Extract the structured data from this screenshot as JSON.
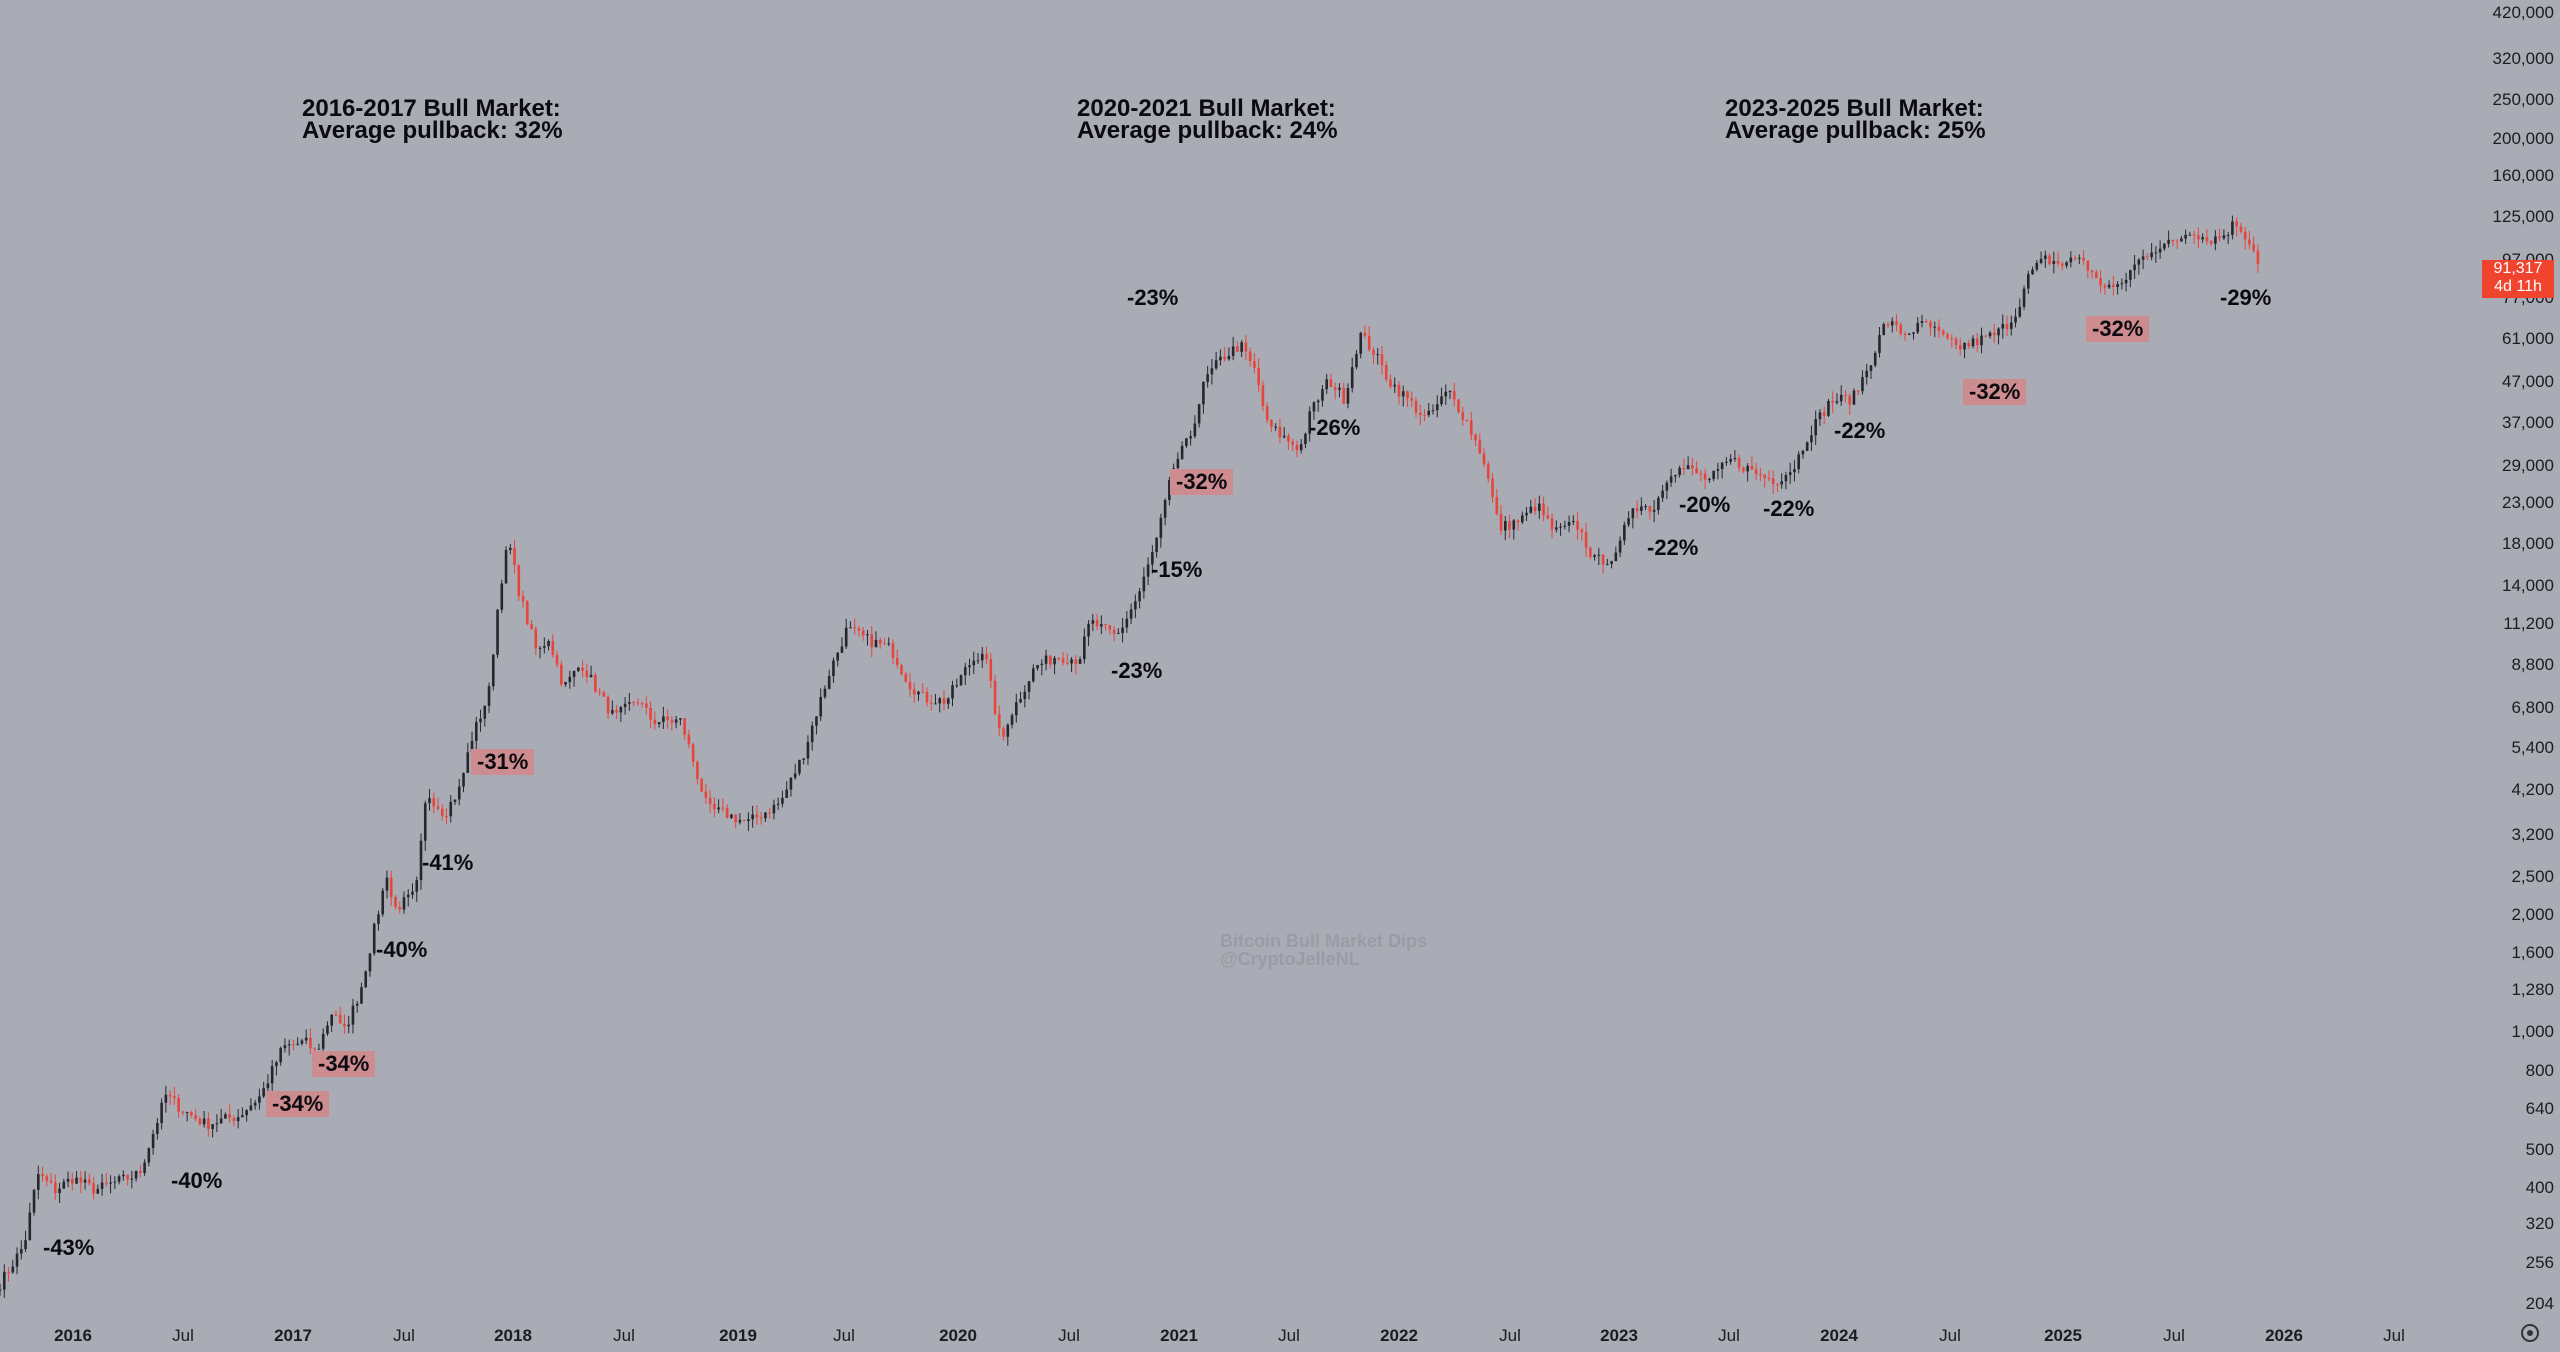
{
  "chart_data": {
    "type": "candlestick",
    "title": "Bitcoin Bull Market Dips",
    "author": "@CryptoJelleNL",
    "scale": "log",
    "ylim": [
      190,
      460000
    ],
    "y_ticks": [
      204,
      256,
      320,
      400,
      500,
      640,
      800,
      1000,
      1280,
      1600,
      2000,
      2500,
      3200,
      4200,
      5400,
      6800,
      8800,
      11200,
      14000,
      18000,
      23000,
      29000,
      37000,
      47000,
      61000,
      77000,
      97000,
      125000,
      160000,
      200000,
      250000,
      320000,
      420000
    ],
    "y_tick_labels": [
      "204",
      "256",
      "320",
      "400",
      "500",
      "640",
      "800",
      "1,000",
      "1,280",
      "1,600",
      "2,000",
      "2,500",
      "3,200",
      "4,200",
      "5,400",
      "6,800",
      "8,800",
      "11,200",
      "14,000",
      "18,000",
      "23,000",
      "29,000",
      "37,000",
      "47,000",
      "61,000",
      "77,000",
      "97,000",
      "125,000",
      "160,000",
      "200,000",
      "250,000",
      "320,000",
      "420,000"
    ],
    "x_ticks": [
      {
        "label": "2016",
        "t": 2016.0,
        "bold": true
      },
      {
        "label": "Jul",
        "t": 2016.5,
        "bold": false
      },
      {
        "label": "2017",
        "t": 2017.0,
        "bold": true
      },
      {
        "label": "Jul",
        "t": 2017.5,
        "bold": false
      },
      {
        "label": "2018",
        "t": 2018.0,
        "bold": true
      },
      {
        "label": "Jul",
        "t": 2018.5,
        "bold": false
      },
      {
        "label": "2019",
        "t": 2019.0,
        "bold": true
      },
      {
        "label": "Jul",
        "t": 2019.5,
        "bold": false
      },
      {
        "label": "2020",
        "t": 2020.0,
        "bold": true
      },
      {
        "label": "Jul",
        "t": 2020.5,
        "bold": false
      },
      {
        "label": "2021",
        "t": 2021.0,
        "bold": true
      },
      {
        "label": "Jul",
        "t": 2021.5,
        "bold": false
      },
      {
        "label": "2022",
        "t": 2022.0,
        "bold": true
      },
      {
        "label": "Jul",
        "t": 2022.5,
        "bold": false
      },
      {
        "label": "2023",
        "t": 2023.0,
        "bold": true
      },
      {
        "label": "Jul",
        "t": 2023.5,
        "bold": false
      },
      {
        "label": "2024",
        "t": 2024.0,
        "bold": true
      },
      {
        "label": "Jul",
        "t": 2024.5,
        "bold": false
      },
      {
        "label": "2025",
        "t": 2025.0,
        "bold": true
      },
      {
        "label": "Jul",
        "t": 2025.5,
        "bold": false
      },
      {
        "label": "2026",
        "t": 2026.0,
        "bold": true
      },
      {
        "label": "Jul",
        "t": 2026.5,
        "bold": false
      }
    ],
    "price_path": [
      [
        2015.67,
        230
      ],
      [
        2015.78,
        290
      ],
      [
        2015.84,
        440
      ],
      [
        2015.92,
        400
      ],
      [
        2016.0,
        430
      ],
      [
        2016.1,
        400
      ],
      [
        2016.2,
        420
      ],
      [
        2016.3,
        440
      ],
      [
        2016.42,
        700
      ],
      [
        2016.5,
        640
      ],
      [
        2016.6,
        590
      ],
      [
        2016.75,
        620
      ],
      [
        2016.85,
        700
      ],
      [
        2016.95,
        930
      ],
      [
        2017.05,
        960
      ],
      [
        2017.1,
        900
      ],
      [
        2017.18,
        1180
      ],
      [
        2017.22,
        1000
      ],
      [
        2017.3,
        1300
      ],
      [
        2017.42,
        2600
      ],
      [
        2017.45,
        2100
      ],
      [
        2017.55,
        2300
      ],
      [
        2017.6,
        4200
      ],
      [
        2017.68,
        3700
      ],
      [
        2017.75,
        4300
      ],
      [
        2017.8,
        5700
      ],
      [
        2017.88,
        7500
      ],
      [
        2017.93,
        14000
      ],
      [
        2017.97,
        18500
      ],
      [
        2018.02,
        13500
      ],
      [
        2018.1,
        9500
      ],
      [
        2018.15,
        10500
      ],
      [
        2018.22,
        7800
      ],
      [
        2018.3,
        9000
      ],
      [
        2018.38,
        7500
      ],
      [
        2018.45,
        6500
      ],
      [
        2018.55,
        7300
      ],
      [
        2018.62,
        6400
      ],
      [
        2018.75,
        6400
      ],
      [
        2018.87,
        3800
      ],
      [
        2018.95,
        3700
      ],
      [
        2019.05,
        3500
      ],
      [
        2019.2,
        3950
      ],
      [
        2019.3,
        5200
      ],
      [
        2019.42,
        8500
      ],
      [
        2019.5,
        11000
      ],
      [
        2019.6,
        10300
      ],
      [
        2019.7,
        9800
      ],
      [
        2019.78,
        8000
      ],
      [
        2019.85,
        7300
      ],
      [
        2019.95,
        7200
      ],
      [
        2020.05,
        8900
      ],
      [
        2020.12,
        9800
      ],
      [
        2020.2,
        5500
      ],
      [
        2020.22,
        6300
      ],
      [
        2020.35,
        8800
      ],
      [
        2020.45,
        9400
      ],
      [
        2020.55,
        9200
      ],
      [
        2020.6,
        11500
      ],
      [
        2020.72,
        10500
      ],
      [
        2020.82,
        13500
      ],
      [
        2020.9,
        18500
      ],
      [
        2020.98,
        29000
      ],
      [
        2021.05,
        34000
      ],
      [
        2021.12,
        48000
      ],
      [
        2021.2,
        55000
      ],
      [
        2021.28,
        59000
      ],
      [
        2021.35,
        50000
      ],
      [
        2021.4,
        37000
      ],
      [
        2021.48,
        34000
      ],
      [
        2021.55,
        32000
      ],
      [
        2021.6,
        40000
      ],
      [
        2021.68,
        48000
      ],
      [
        2021.75,
        43000
      ],
      [
        2021.82,
        63000
      ],
      [
        2021.88,
        57000
      ],
      [
        2021.95,
        48000
      ],
      [
        2022.05,
        42000
      ],
      [
        2022.12,
        38000
      ],
      [
        2022.22,
        45000
      ],
      [
        2022.3,
        38000
      ],
      [
        2022.38,
        30000
      ],
      [
        2022.45,
        20000
      ],
      [
        2022.55,
        21000
      ],
      [
        2022.62,
        23000
      ],
      [
        2022.7,
        19500
      ],
      [
        2022.8,
        20500
      ],
      [
        2022.88,
        16500
      ],
      [
        2022.98,
        16800
      ],
      [
        2023.05,
        23000
      ],
      [
        2023.15,
        22500
      ],
      [
        2023.22,
        28000
      ],
      [
        2023.3,
        28500
      ],
      [
        2023.4,
        26500
      ],
      [
        2023.5,
        30000
      ],
      [
        2023.62,
        27500
      ],
      [
        2023.7,
        26500
      ],
      [
        2023.78,
        28500
      ],
      [
        2023.85,
        35000
      ],
      [
        2023.95,
        42500
      ],
      [
        2024.05,
        43000
      ],
      [
        2024.12,
        52000
      ],
      [
        2024.2,
        68000
      ],
      [
        2024.28,
        63000
      ],
      [
        2024.38,
        67000
      ],
      [
        2024.45,
        62000
      ],
      [
        2024.52,
        58000
      ],
      [
        2024.6,
        60000
      ],
      [
        2024.7,
        63000
      ],
      [
        2024.78,
        70000
      ],
      [
        2024.85,
        90000
      ],
      [
        2024.92,
        98000
      ],
      [
        2025.0,
        95000
      ],
      [
        2025.08,
        100000
      ],
      [
        2025.15,
        86000
      ],
      [
        2025.25,
        82000
      ],
      [
        2025.32,
        94000
      ],
      [
        2025.4,
        104000
      ],
      [
        2025.5,
        108000
      ],
      [
        2025.58,
        117000
      ],
      [
        2025.65,
        110000
      ],
      [
        2025.72,
        112000
      ],
      [
        2025.78,
        122000
      ],
      [
        2025.85,
        108000
      ],
      [
        2025.9,
        91317
      ]
    ],
    "dips": [
      {
        "label": "-43%",
        "highlight": false
      },
      {
        "label": "-40%",
        "highlight": false
      },
      {
        "label": "-34%",
        "highlight": true
      },
      {
        "label": "-34%",
        "highlight": true
      },
      {
        "label": "-40%",
        "highlight": false
      },
      {
        "label": "-41%",
        "highlight": false
      },
      {
        "label": "-31%",
        "highlight": true
      },
      {
        "label": "-23%",
        "highlight": false
      },
      {
        "label": "-15%",
        "highlight": false
      },
      {
        "label": "-32%",
        "highlight": true
      },
      {
        "label": "-23%",
        "highlight": false
      },
      {
        "label": "-26%",
        "highlight": false
      },
      {
        "label": "-22%",
        "highlight": false
      },
      {
        "label": "-20%",
        "highlight": false
      },
      {
        "label": "-22%",
        "highlight": false
      },
      {
        "label": "-22%",
        "highlight": false
      },
      {
        "label": "-32%",
        "highlight": true
      },
      {
        "label": "-32%",
        "highlight": true
      },
      {
        "label": "-29%",
        "highlight": false
      }
    ],
    "annotations": [
      {
        "line1": "2016-2017 Bull Market:",
        "line2": "Average pullback: 32%"
      },
      {
        "line1": "2020-2021 Bull Market:",
        "line2": "Average pullback: 24%"
      },
      {
        "line1": "2023-2025 Bull Market:",
        "line2": "Average pullback: 25%"
      }
    ],
    "last_price": {
      "value": "91,317",
      "countdown": "4d 11h"
    }
  },
  "colors": {
    "background": "#a9abb5",
    "up_candle": "#26272e",
    "down_candle": "#e8453a",
    "highlight": "#cc8c90",
    "price_badge": "#f0442f"
  },
  "icons": {
    "settings": "gear-icon"
  }
}
